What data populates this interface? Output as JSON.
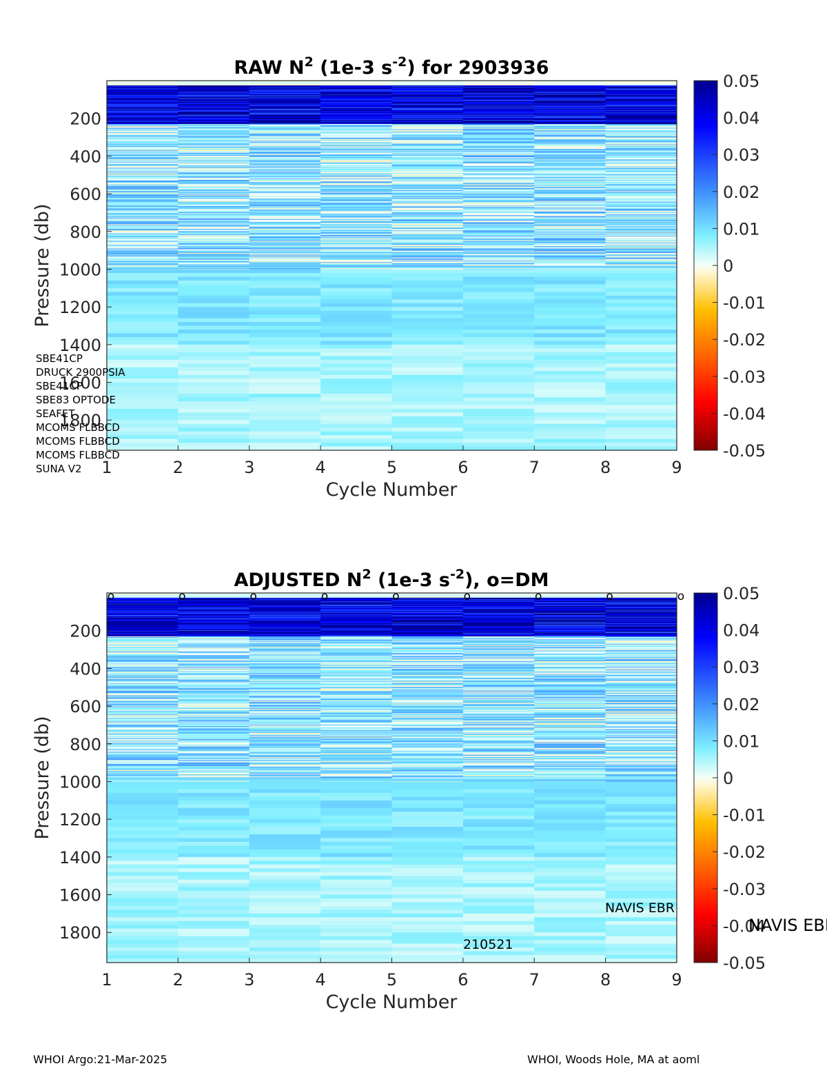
{
  "chart_data": [
    {
      "type": "heatmap",
      "title": {
        "prefix": "RAW N",
        "sup1": "2",
        "middle": " (1e-3 s",
        "sup2": "-2",
        "suffix": ") for 2903936"
      },
      "xlabel": "Cycle Number",
      "ylabel": "Pressure (db)",
      "x_ticks": [
        "1",
        "2",
        "3",
        "4",
        "5",
        "6",
        "7",
        "8",
        "9"
      ],
      "y_ticks": [
        "200",
        "400",
        "600",
        "800",
        "1000",
        "1200",
        "1400",
        "1600",
        "1800"
      ],
      "y_tick_values": [
        200,
        400,
        600,
        800,
        1000,
        1200,
        1400,
        1600,
        1800
      ],
      "xlim": [
        1,
        9
      ],
      "ylim": [
        0,
        1960
      ],
      "y_reversed": true,
      "cycles": [
        1,
        2,
        3,
        4,
        5,
        6,
        7,
        8
      ],
      "colorbar": {
        "ticks": [
          "0.05",
          "0.04",
          "0.03",
          "0.02",
          "0.01",
          "0",
          "-0.01",
          "-0.02",
          "-0.03",
          "-0.04",
          "-0.05"
        ],
        "range": [
          -0.05,
          0.05
        ],
        "colormap": "jet"
      },
      "profile_layers": [
        {
          "p_top": 0,
          "p_bottom": 25,
          "value": 0.001
        },
        {
          "p_top": 25,
          "p_bottom": 230,
          "value": 0.044
        },
        {
          "p_top": 230,
          "p_bottom": 1000,
          "value": 0.009
        },
        {
          "p_top": 1000,
          "p_bottom": 1400,
          "value": 0.0085
        },
        {
          "p_top": 1400,
          "p_bottom": 1960,
          "value": 0.005
        }
      ],
      "annotations": {
        "sensors": [
          "SBE41CP",
          "DRUCK 2900PSIA",
          "SBE41CP",
          "SBE83 OPTODE",
          "SEAFET",
          "MCOMS FLBBCD",
          "MCOMS FLBBCD",
          "MCOMS FLBBCD",
          "SUNA V2"
        ]
      }
    },
    {
      "type": "heatmap",
      "title": {
        "prefix": "ADJUSTED N",
        "sup1": "2",
        "middle": " (1e-3 s",
        "sup2": "-2",
        "suffix": "), o=DM"
      },
      "xlabel": "Cycle Number",
      "ylabel": "Pressure (db)",
      "x_ticks": [
        "1",
        "2",
        "3",
        "4",
        "5",
        "6",
        "7",
        "8",
        "9"
      ],
      "y_ticks": [
        "200",
        "400",
        "600",
        "800",
        "1000",
        "1200",
        "1400",
        "1600",
        "1800"
      ],
      "y_tick_values": [
        200,
        400,
        600,
        800,
        1000,
        1200,
        1400,
        1600,
        1800
      ],
      "xlim": [
        1,
        9
      ],
      "ylim": [
        0,
        1960
      ],
      "y_reversed": true,
      "cycles": [
        1,
        2,
        3,
        4,
        5,
        6,
        7,
        8
      ],
      "dm_marker": "o",
      "dm_cycles": [
        1,
        2,
        3,
        4,
        5,
        6,
        7,
        8,
        9
      ],
      "colorbar": {
        "ticks": [
          "0.05",
          "0.04",
          "0.03",
          "0.02",
          "0.01",
          "0",
          "-0.01",
          "-0.02",
          "-0.03",
          "-0.04",
          "-0.05"
        ],
        "range": [
          -0.05,
          0.05
        ],
        "colormap": "jet"
      },
      "profile_layers": [
        {
          "p_top": 0,
          "p_bottom": 25,
          "value": 0.001
        },
        {
          "p_top": 25,
          "p_bottom": 230,
          "value": 0.044
        },
        {
          "p_top": 230,
          "p_bottom": 1000,
          "value": 0.009
        },
        {
          "p_top": 1000,
          "p_bottom": 1400,
          "value": 0.0085
        },
        {
          "p_top": 1400,
          "p_bottom": 1960,
          "value": 0.005
        }
      ],
      "annotations": {
        "platform_inside": "NAVIS EBR",
        "platform_outside": "NAVIS EBR",
        "firmware": "210521"
      }
    }
  ],
  "footer": {
    "left": "WHOI Argo:21-Mar-2025",
    "right": "WHOI, Woods Hole, MA at aoml"
  }
}
